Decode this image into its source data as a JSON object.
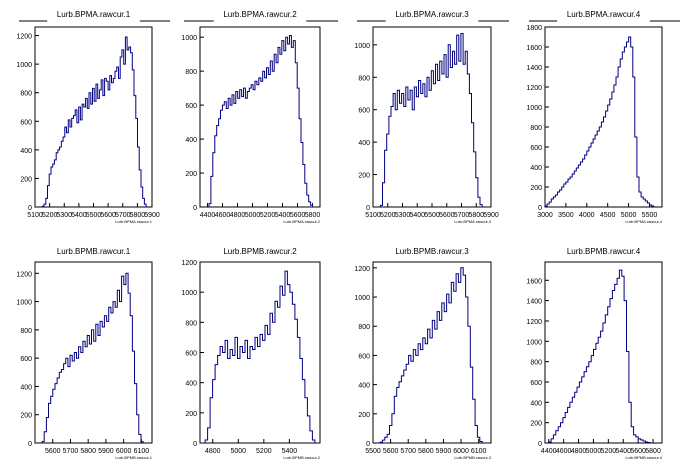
{
  "chart_data": [
    {
      "type": "histogram",
      "title": "Lurb.BPMA.rawcur.1",
      "xlabel": "Lurb.BPMA.rawcur.1",
      "xlim": [
        5100,
        5900
      ],
      "ylim": [
        0,
        1260
      ],
      "xticks": [
        5100,
        5200,
        5300,
        5400,
        5500,
        5600,
        5700,
        5800,
        5900
      ],
      "xtick_labels": [
        "5100",
        "5200",
        "5300",
        "5400",
        "5500",
        "5600",
        "5700",
        "5800",
        "5900"
      ],
      "yticks": [
        0,
        200,
        400,
        600,
        800,
        1000,
        1200
      ],
      "yrange": [
        5150,
        5860
      ],
      "values": [
        5,
        20,
        60,
        150,
        230,
        280,
        300,
        330,
        380,
        400,
        420,
        460,
        490,
        560,
        520,
        610,
        560,
        620,
        640,
        680,
        590,
        700,
        610,
        720,
        700,
        760,
        690,
        800,
        720,
        830,
        740,
        860,
        760,
        820,
        890,
        780,
        900,
        880,
        820,
        920,
        870,
        900,
        950,
        980,
        900,
        1050,
        1100,
        1000,
        1190,
        1100,
        1120,
        1080,
        960,
        780,
        620,
        420,
        260,
        140,
        60,
        20
      ]
    },
    {
      "type": "histogram",
      "title": "Lurb.BPMA.rawcur.2",
      "xlabel": "Lurb.BPMA.rawcur.2",
      "xlim": [
        4300,
        5900
      ],
      "ylim": [
        0,
        1060
      ],
      "xticks": [
        4400,
        4600,
        4800,
        5000,
        5200,
        5400,
        5600,
        5800
      ],
      "xtick_labels": [
        "4400",
        "4600",
        "4800",
        "5000",
        "5200",
        "5400",
        "5600",
        "5800"
      ],
      "yticks": [
        0,
        200,
        400,
        600,
        800,
        1000
      ],
      "yrange": [
        4420,
        5800
      ],
      "values": [
        20,
        180,
        320,
        420,
        480,
        520,
        570,
        600,
        620,
        580,
        640,
        600,
        660,
        610,
        680,
        640,
        690,
        650,
        700,
        640,
        680,
        700,
        720,
        690,
        740,
        720,
        760,
        740,
        800,
        760,
        820,
        780,
        860,
        800,
        900,
        850,
        940,
        900,
        980,
        920,
        1000,
        960,
        1010,
        940,
        980,
        850,
        700,
        520,
        380,
        250,
        140,
        70,
        30,
        10
      ]
    },
    {
      "type": "histogram",
      "title": "Lurb.BPMA.rawcur.3",
      "xlabel": "Lurb.BPMA.rawcur.3",
      "xlim": [
        5100,
        5900
      ],
      "ylim": [
        0,
        1110
      ],
      "xticks": [
        5100,
        5200,
        5300,
        5400,
        5500,
        5600,
        5700,
        5800,
        5900
      ],
      "xtick_labels": [
        "5100",
        "5200",
        "5300",
        "5400",
        "5500",
        "5600",
        "5700",
        "5800",
        "5900"
      ],
      "yticks": [
        0,
        200,
        400,
        600,
        800,
        1000
      ],
      "yrange": [
        5150,
        5840
      ],
      "values": [
        10,
        150,
        350,
        450,
        560,
        620,
        700,
        600,
        720,
        640,
        700,
        620,
        740,
        660,
        720,
        600,
        740,
        680,
        780,
        700,
        760,
        680,
        800,
        720,
        840,
        760,
        880,
        780,
        900,
        820,
        940,
        800,
        1000,
        860,
        960,
        880,
        1060,
        900,
        1070,
        880,
        960,
        820,
        700,
        520,
        340,
        180,
        60,
        15
      ]
    },
    {
      "type": "histogram",
      "title": "Lurb.BPMA.rawcur.4",
      "xlabel": "Lurb.BPMA.rawcur.4",
      "xlim": [
        3000,
        5800
      ],
      "ylim": [
        0,
        1800
      ],
      "xticks": [
        3000,
        3500,
        4000,
        4500,
        5000,
        5500
      ],
      "xtick_labels": [
        "3000",
        "3500",
        "4000",
        "4500",
        "5000",
        "5500"
      ],
      "yticks": [
        0,
        200,
        400,
        600,
        800,
        1000,
        1200,
        1400,
        1600,
        1800
      ],
      "yrange": [
        3000,
        5600
      ],
      "values": [
        10,
        30,
        50,
        80,
        100,
        120,
        150,
        170,
        200,
        230,
        250,
        280,
        300,
        330,
        360,
        390,
        420,
        450,
        480,
        520,
        560,
        600,
        640,
        680,
        720,
        760,
        800,
        850,
        900,
        960,
        1020,
        1080,
        1150,
        1220,
        1300,
        1400,
        1480,
        1550,
        1600,
        1650,
        1700,
        1600,
        1300,
        700,
        300,
        150,
        100,
        80,
        60,
        40,
        20,
        10
      ]
    },
    {
      "type": "histogram",
      "title": "Lurb.BPMB.rawcur.1",
      "xlabel": "Lurb.BPMB.rawcur.1",
      "xlim": [
        5500,
        6160
      ],
      "ylim": [
        0,
        1280
      ],
      "xticks": [
        5600,
        5700,
        5800,
        5900,
        6000,
        6100
      ],
      "xtick_labels": [
        "5600",
        "5700",
        "5800",
        "5900",
        "6000",
        "6100"
      ],
      "yticks": [
        0,
        200,
        400,
        600,
        800,
        1000,
        1200
      ],
      "yrange": [
        5540,
        6110
      ],
      "values": [
        10,
        80,
        180,
        280,
        330,
        380,
        420,
        460,
        500,
        520,
        560,
        600,
        540,
        620,
        580,
        640,
        600,
        680,
        640,
        720,
        680,
        760,
        700,
        800,
        720,
        840,
        760,
        860,
        820,
        900,
        860,
        960,
        920,
        1000,
        960,
        1080,
        1000,
        1180,
        1120,
        1200,
        1060,
        900,
        650,
        420,
        200,
        60,
        10
      ]
    },
    {
      "type": "histogram",
      "title": "Lurb.BPMB.rawcur.2",
      "xlabel": "Lurb.BPMB.rawcur.2",
      "xlim": [
        4700,
        5640
      ],
      "ylim": [
        0,
        1200
      ],
      "xticks": [
        4800,
        5000,
        5200,
        5400
      ],
      "xtick_labels": [
        "4800",
        "5000",
        "5200",
        "5400"
      ],
      "yticks": [
        0,
        200,
        400,
        600,
        800,
        1000,
        1200
      ],
      "yrange": [
        4740,
        5600
      ],
      "values": [
        20,
        100,
        300,
        420,
        520,
        580,
        640,
        600,
        680,
        560,
        620,
        580,
        700,
        560,
        640,
        600,
        680,
        560,
        640,
        620,
        700,
        640,
        720,
        680,
        780,
        720,
        860,
        800,
        940,
        900,
        1040,
        980,
        1140,
        1050,
        1000,
        920,
        820,
        700,
        560,
        420,
        300,
        180,
        80,
        20
      ]
    },
    {
      "type": "histogram",
      "title": "Lurb.BPMB.rawcur.3",
      "xlabel": "Lurb.BPMB.rawcur.3",
      "xlim": [
        5500,
        6170
      ],
      "ylim": [
        0,
        1240
      ],
      "xticks": [
        5500,
        5600,
        5700,
        5800,
        5900,
        6000,
        6100
      ],
      "xtick_labels": [
        "5500",
        "5600",
        "5700",
        "5800",
        "5900",
        "6000",
        "6100"
      ],
      "yticks": [
        0,
        200,
        400,
        600,
        800,
        1000,
        1200
      ],
      "yrange": [
        5540,
        6120
      ],
      "values": [
        5,
        20,
        40,
        60,
        120,
        200,
        320,
        380,
        420,
        460,
        500,
        540,
        600,
        560,
        640,
        600,
        680,
        640,
        720,
        680,
        780,
        720,
        840,
        780,
        900,
        840,
        960,
        900,
        1020,
        960,
        1100,
        1040,
        1160,
        1100,
        1200,
        1150,
        1000,
        800,
        520,
        300,
        120,
        40,
        10
      ]
    },
    {
      "type": "histogram",
      "title": "Lurb.BPMB.rawcur.4",
      "xlabel": "Lurb.BPMB.rawcur.4",
      "xlim": [
        4350,
        5920
      ],
      "ylim": [
        0,
        1780
      ],
      "xticks": [
        4400,
        4600,
        4800,
        5000,
        5200,
        5400,
        5600,
        5800
      ],
      "xtick_labels": [
        "4400",
        "4600",
        "4800",
        "5000",
        "5200",
        "5400",
        "5600",
        "5800"
      ],
      "yticks": [
        0,
        200,
        400,
        600,
        800,
        1000,
        1200,
        1400,
        1600
      ],
      "yrange": [
        4400,
        5760
      ],
      "values": [
        10,
        40,
        80,
        120,
        160,
        200,
        250,
        300,
        350,
        400,
        450,
        500,
        550,
        600,
        650,
        700,
        750,
        800,
        860,
        920,
        980,
        1040,
        1100,
        1180,
        1260,
        1340,
        1420,
        1500,
        1560,
        1620,
        1700,
        1640,
        1400,
        900,
        400,
        160,
        80,
        60,
        40,
        30,
        20,
        10,
        5
      ]
    }
  ]
}
